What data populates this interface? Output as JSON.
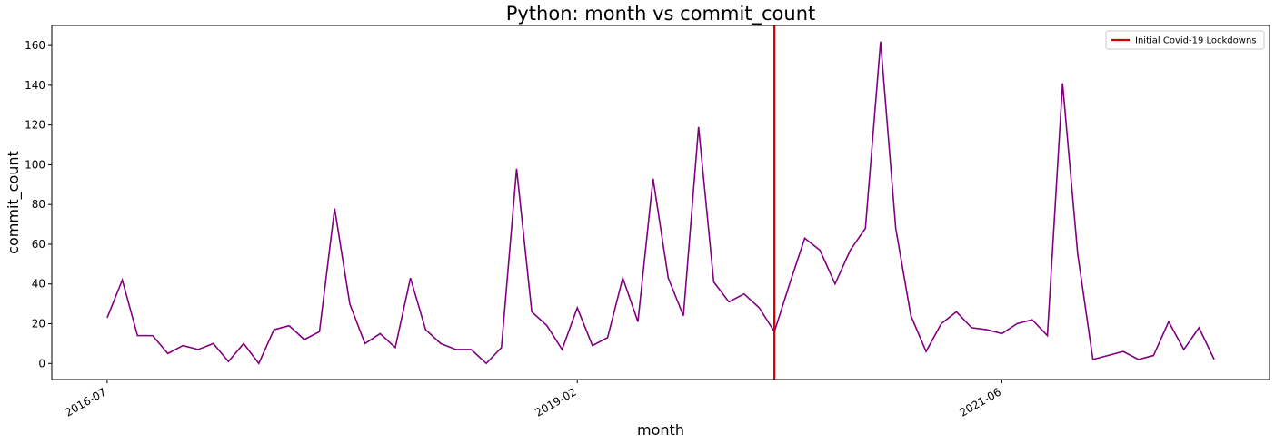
{
  "chart_data": {
    "type": "line",
    "title": "Python: month vs commit_count",
    "xlabel": "month",
    "ylabel": "commit_count",
    "x": [
      "2016-07",
      "2016-08",
      "2016-09",
      "2016-10",
      "2016-11",
      "2016-12",
      "2017-01",
      "2017-02",
      "2017-03",
      "2017-04",
      "2017-05",
      "2017-06",
      "2017-07",
      "2017-08",
      "2017-09",
      "2017-10",
      "2017-11",
      "2017-12",
      "2018-01",
      "2018-02",
      "2018-03",
      "2018-04",
      "2018-05",
      "2018-06",
      "2018-07",
      "2018-08",
      "2018-09",
      "2018-10",
      "2018-11",
      "2018-12",
      "2019-01",
      "2019-02",
      "2019-03",
      "2019-04",
      "2019-05",
      "2019-06",
      "2019-07",
      "2019-08",
      "2019-09",
      "2019-10",
      "2019-11",
      "2019-12",
      "2020-01",
      "2020-02",
      "2020-03",
      "2020-04",
      "2020-05",
      "2020-06",
      "2020-07",
      "2020-08",
      "2020-09",
      "2020-10",
      "2020-11",
      "2020-12",
      "2021-01",
      "2021-02",
      "2021-03",
      "2021-04",
      "2021-05",
      "2021-06",
      "2021-07",
      "2021-08",
      "2021-09",
      "2021-10",
      "2021-11",
      "2021-12",
      "2022-01",
      "2022-02",
      "2022-03",
      "2022-04",
      "2022-05",
      "2022-06",
      "2022-07",
      "2022-08"
    ],
    "values": [
      23,
      42,
      14,
      14,
      5,
      9,
      7,
      10,
      1,
      10,
      0,
      17,
      19,
      12,
      16,
      78,
      30,
      10,
      15,
      8,
      43,
      17,
      10,
      7,
      7,
      0,
      8,
      98,
      26,
      19,
      7,
      28,
      9,
      13,
      43,
      21,
      93,
      43,
      24,
      119,
      41,
      31,
      35,
      28,
      16,
      40,
      63,
      57,
      40,
      57,
      68,
      162,
      68,
      24,
      6,
      20,
      26,
      18,
      17,
      15,
      20,
      22,
      14,
      141,
      55,
      2,
      4,
      6,
      2,
      4,
      21,
      7,
      18,
      2
    ],
    "color": "#800080",
    "xticks": [
      "2016-07",
      "2019-02",
      "2021-06"
    ],
    "ylim": [
      -8.1,
      170.1
    ],
    "yticks": [
      0,
      20,
      40,
      60,
      80,
      100,
      120,
      140,
      160
    ],
    "vline": {
      "x": "2020-03",
      "label": "Initial Covid-19 Lockdowns",
      "color": "#cc0000"
    },
    "legend": "upper right"
  }
}
